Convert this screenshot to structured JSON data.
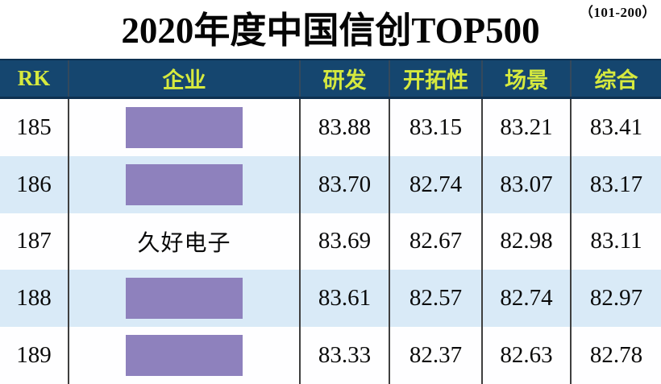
{
  "page": {
    "range_label": "（101-200）",
    "title": "2020年度中国信创TOP500"
  },
  "table": {
    "columns": [
      {
        "label": "RK"
      },
      {
        "label": "企业"
      },
      {
        "label": "研发"
      },
      {
        "label": "开拓性"
      },
      {
        "label": "场景"
      },
      {
        "label": "综合"
      }
    ],
    "rows": [
      {
        "rk": "185",
        "company": "",
        "company_redacted": true,
        "rd": "83.88",
        "pioneer": "83.15",
        "scene": "83.21",
        "overall": "83.41"
      },
      {
        "rk": "186",
        "company": "",
        "company_redacted": true,
        "rd": "83.70",
        "pioneer": "82.74",
        "scene": "83.07",
        "overall": "83.17"
      },
      {
        "rk": "187",
        "company": "久好电子",
        "company_redacted": false,
        "rd": "83.69",
        "pioneer": "82.67",
        "scene": "82.98",
        "overall": "83.11"
      },
      {
        "rk": "188",
        "company": "",
        "company_redacted": true,
        "rd": "83.61",
        "pioneer": "82.57",
        "scene": "82.74",
        "overall": "82.97"
      },
      {
        "rk": "189",
        "company": "",
        "company_redacted": true,
        "rd": "83.33",
        "pioneer": "82.37",
        "scene": "82.63",
        "overall": "82.78"
      }
    ]
  },
  "chart_data": {
    "type": "table",
    "title": "2020年度中国信创TOP500",
    "annotation": "（101-200）",
    "columns": [
      "RK",
      "企业",
      "研发",
      "开拓性",
      "场景",
      "综合"
    ],
    "rows": [
      [
        185,
        null,
        83.88,
        83.15,
        83.21,
        83.41
      ],
      [
        186,
        null,
        83.7,
        82.74,
        83.07,
        83.17
      ],
      [
        187,
        "久好电子",
        83.69,
        82.67,
        82.98,
        83.11
      ],
      [
        188,
        null,
        83.61,
        82.57,
        82.74,
        82.97
      ],
      [
        189,
        null,
        83.33,
        82.37,
        82.63,
        82.78
      ]
    ],
    "redacted_company_rows": [
      185,
      186,
      188,
      189
    ]
  },
  "colors": {
    "header_bg": "#15466F",
    "header_text": "#D6E93E",
    "header_border": "#0D3050",
    "row_alt_bg": "#D9EAF7",
    "row_bg": "#FFFFFF",
    "redaction_box": "#8E81BD",
    "column_divider": "#3F3F3F",
    "body_text": "#0A0A0A"
  }
}
